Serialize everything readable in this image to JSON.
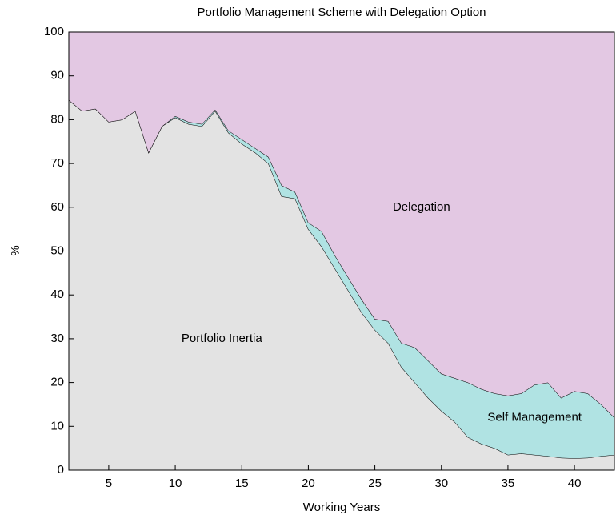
{
  "chart_data": {
    "type": "stacked_area",
    "title": "Portfolio Management Scheme with Delegation Option",
    "x_label": "Working Years",
    "y_label": "%",
    "x": [
      2,
      3,
      4,
      5,
      6,
      7,
      8,
      9,
      10,
      11,
      12,
      13,
      14,
      15,
      16,
      17,
      18,
      19,
      20,
      21,
      22,
      23,
      24,
      25,
      26,
      27,
      28,
      29,
      30,
      31,
      32,
      33,
      34,
      35,
      36,
      37,
      38,
      39,
      40,
      41,
      42,
      43
    ],
    "series": [
      {
        "name": "Portfolio Inertia",
        "color": "#e3e3e3",
        "values": [
          84.5,
          82,
          82.5,
          79.5,
          80,
          82,
          72.5,
          78.5,
          80.5,
          79,
          78.5,
          82,
          77,
          74.5,
          72.5,
          70,
          62.5,
          62,
          55,
          51,
          46,
          41,
          36,
          32,
          29,
          23.5,
          20,
          16.5,
          13.5,
          11,
          7.5,
          6,
          5,
          3.5,
          3.8,
          3.5,
          3.2,
          2.8,
          2.7,
          2.8,
          3.2,
          3.5
        ]
      },
      {
        "name": "Self Management",
        "color": "#b0e3e3",
        "values": [
          0,
          0,
          0,
          0,
          0,
          0,
          0,
          0,
          0.3,
          0.5,
          0.5,
          0.3,
          0.5,
          1,
          1,
          1.5,
          2.5,
          1.5,
          1.5,
          3.5,
          3,
          3,
          3,
          2.5,
          5,
          5.5,
          8,
          8.5,
          8.5,
          10,
          12.5,
          12.5,
          12.5,
          13.5,
          13.7,
          16,
          16.8,
          13.7,
          15.3,
          14.7,
          11.8,
          8.5
        ]
      },
      {
        "name": "Delegation",
        "color": "#e3c8e3",
        "values": [
          15.5,
          18,
          17.5,
          20.5,
          20,
          18,
          27.5,
          21.5,
          19.2,
          20.5,
          21,
          17.7,
          22.5,
          24.5,
          26.5,
          28.5,
          35,
          36.5,
          43.5,
          45.5,
          51,
          56,
          61,
          65.5,
          66,
          71,
          72,
          75,
          78,
          79,
          80,
          81.5,
          82.5,
          83,
          82.5,
          80.5,
          80,
          83.5,
          82,
          82.5,
          85,
          88
        ]
      }
    ],
    "xlim": [
      2,
      43
    ],
    "ylim": [
      0,
      100
    ],
    "xticks": [
      5,
      10,
      15,
      20,
      25,
      30,
      35,
      40
    ],
    "yticks": [
      0,
      10,
      20,
      30,
      40,
      50,
      60,
      70,
      80,
      90,
      100
    ]
  }
}
